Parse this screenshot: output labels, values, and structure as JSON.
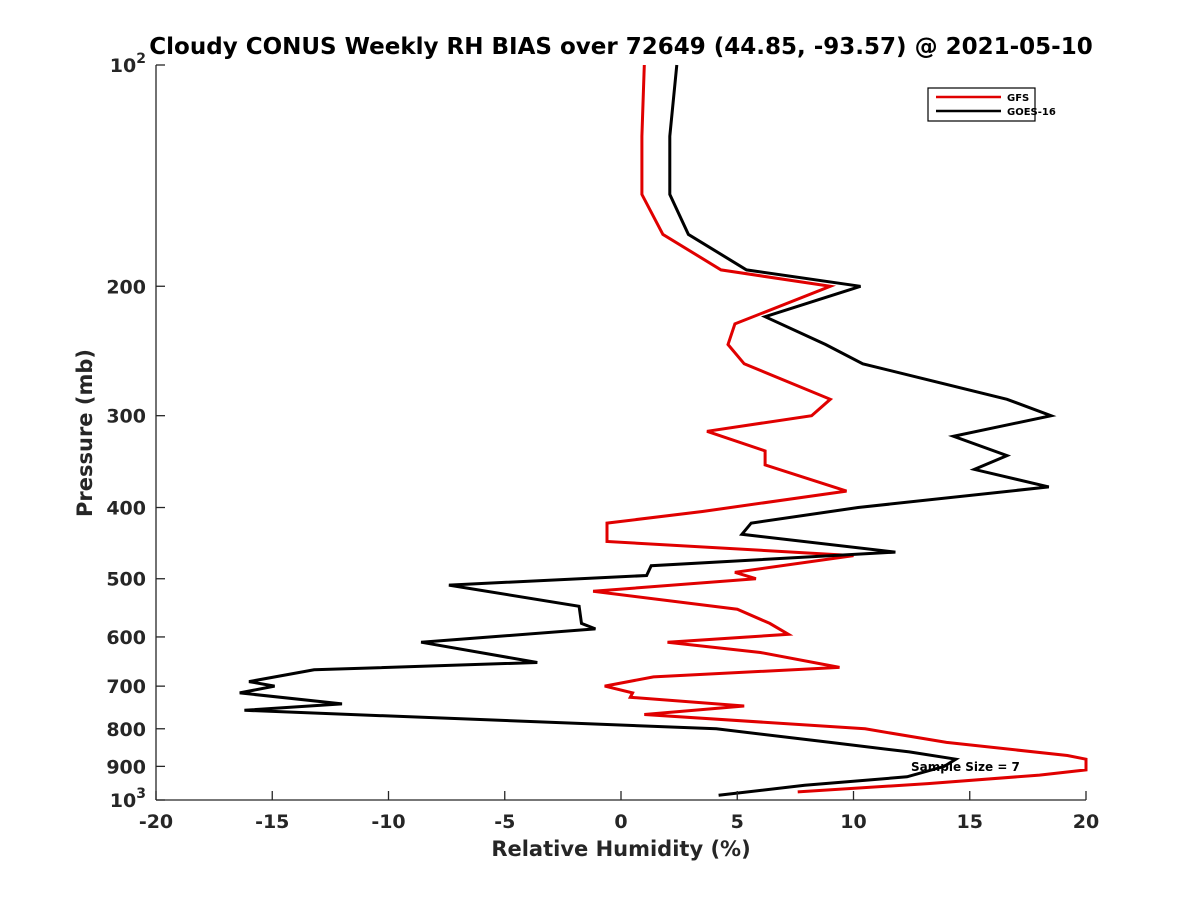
{
  "chart_data": {
    "type": "line",
    "title": "Cloudy CONUS Weekly RH BIAS over 72649 (44.85, -93.57) @ 2021-05-10",
    "xlabel": "Relative Humidity (%)",
    "ylabel": "Pressure (mb)",
    "xlim": [
      -20,
      20
    ],
    "ylim": [
      100,
      1000
    ],
    "y_scale": "log",
    "y_reversed": true,
    "grid": false,
    "legend_position": "top-right",
    "x_ticks": [
      -20,
      -15,
      -10,
      -5,
      0,
      5,
      10,
      15,
      20
    ],
    "x_tick_labels": [
      "-20",
      "-15",
      "-10",
      "-5",
      "0",
      "5",
      "10",
      "15",
      "20"
    ],
    "y_ticks": [
      100,
      200,
      300,
      400,
      500,
      600,
      700,
      800,
      900,
      1000
    ],
    "y_tick_labels": [
      {
        "base": "10",
        "sup": "2"
      },
      {
        "base": "200",
        "sup": ""
      },
      {
        "base": "300",
        "sup": ""
      },
      {
        "base": "400",
        "sup": ""
      },
      {
        "base": "500",
        "sup": ""
      },
      {
        "base": "600",
        "sup": ""
      },
      {
        "base": "700",
        "sup": ""
      },
      {
        "base": "800",
        "sup": ""
      },
      {
        "base": "900",
        "sup": ""
      },
      {
        "base": "10",
        "sup": "3"
      }
    ],
    "annotation": "Sample Size = 7",
    "series": [
      {
        "name": "GFS",
        "color": "#e00000",
        "points": [
          [
            1.0,
            100
          ],
          [
            0.9,
            125
          ],
          [
            0.9,
            150
          ],
          [
            1.8,
            170
          ],
          [
            4.3,
            190
          ],
          [
            9.0,
            200
          ],
          [
            4.9,
            225
          ],
          [
            4.6,
            240
          ],
          [
            5.3,
            255
          ],
          [
            9.0,
            285
          ],
          [
            8.2,
            300
          ],
          [
            3.7,
            315
          ],
          [
            6.2,
            335
          ],
          [
            6.2,
            350
          ],
          [
            9.7,
            380
          ],
          [
            3.5,
            405
          ],
          [
            -0.6,
            420
          ],
          [
            -0.6,
            445
          ],
          [
            10.0,
            465
          ],
          [
            4.9,
            490
          ],
          [
            5.8,
            500
          ],
          [
            -1.2,
            520
          ],
          [
            5.0,
            550
          ],
          [
            6.4,
            575
          ],
          [
            7.2,
            595
          ],
          [
            2.0,
            610
          ],
          [
            6.0,
            630
          ],
          [
            9.4,
            660
          ],
          [
            1.4,
            680
          ],
          [
            -0.7,
            700
          ],
          [
            0.5,
            715
          ],
          [
            0.4,
            725
          ],
          [
            5.3,
            745
          ],
          [
            1.0,
            765
          ],
          [
            10.5,
            800
          ],
          [
            14.0,
            835
          ],
          [
            19.2,
            870
          ],
          [
            20.0,
            880
          ],
          [
            20.0,
            910
          ],
          [
            18.0,
            925
          ],
          [
            13.2,
            950
          ],
          [
            7.6,
            975
          ]
        ]
      },
      {
        "name": "GOES-16",
        "color": "#000000",
        "points": [
          [
            2.4,
            100
          ],
          [
            2.1,
            125
          ],
          [
            2.1,
            150
          ],
          [
            2.9,
            170
          ],
          [
            5.4,
            190
          ],
          [
            10.3,
            200
          ],
          [
            6.2,
            220
          ],
          [
            8.8,
            240
          ],
          [
            10.4,
            255
          ],
          [
            16.6,
            285
          ],
          [
            18.5,
            300
          ],
          [
            14.3,
            320
          ],
          [
            16.6,
            340
          ],
          [
            15.2,
            355
          ],
          [
            18.4,
            375
          ],
          [
            10.2,
            400
          ],
          [
            5.6,
            420
          ],
          [
            5.2,
            435
          ],
          [
            11.8,
            460
          ],
          [
            1.3,
            480
          ],
          [
            1.1,
            495
          ],
          [
            -7.4,
            510
          ],
          [
            -1.8,
            545
          ],
          [
            -1.7,
            575
          ],
          [
            -1.1,
            585
          ],
          [
            -8.6,
            610
          ],
          [
            -3.6,
            650
          ],
          [
            -13.2,
            665
          ],
          [
            -16.0,
            690
          ],
          [
            -14.9,
            700
          ],
          [
            -16.4,
            715
          ],
          [
            -12.0,
            740
          ],
          [
            -16.2,
            755
          ],
          [
            4.1,
            800
          ],
          [
            9.0,
            835
          ],
          [
            12.4,
            860
          ],
          [
            14.4,
            880
          ],
          [
            13.9,
            900
          ],
          [
            12.3,
            930
          ],
          [
            7.9,
            955
          ],
          [
            4.2,
            985
          ]
        ]
      }
    ]
  }
}
